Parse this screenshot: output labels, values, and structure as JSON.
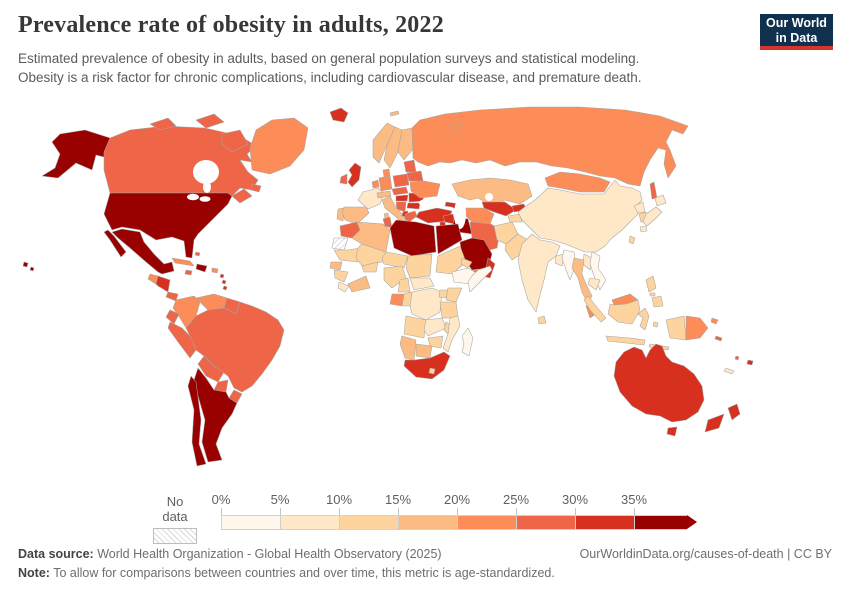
{
  "header": {
    "title": "Prevalence rate of obesity in adults, 2022",
    "subtitle_line1": "Estimated prevalence of obesity in adults, based on general population surveys and statistical modeling.",
    "subtitle_line2": "Obesity is a risk factor for chronic complications, including cardiovascular disease, and premature death.",
    "logo": {
      "line1": "Our World",
      "line2": "in Data",
      "bg": "#10304f",
      "accent": "#d5352c"
    }
  },
  "legend": {
    "no_data_label": "No data",
    "tick_labels": [
      "0%",
      "5%",
      "10%",
      "15%",
      "20%",
      "25%",
      "30%",
      "35%"
    ],
    "bin_colors": [
      "#fff7ec",
      "#fee8c8",
      "#fdd49e",
      "#fdbb84",
      "#fc8d59",
      "#ef6548",
      "#d7301f",
      "#990000"
    ]
  },
  "footer": {
    "source_label": "Data source:",
    "source_text": " World Health Organization - Global Health Observatory (2025)",
    "link_text": "OurWorldinData.org/causes-of-death | CC BY",
    "note_label": "Note:",
    "note_text": " To allow for comparisons between countries and over time, this metric is age-standardized."
  },
  "map": {
    "ocean": "#ffffff",
    "no_data_fill": "url(#hatch)",
    "region_fills": {
      "alaska": "#990000",
      "usa": "#990000",
      "canada": "#ef6548",
      "arctic_islands": "#ef6548",
      "greenland": "#fc8d59",
      "mexico": "#990000",
      "guatemala": "#fc8d59",
      "honduras_nicaragua": "#d7301f",
      "costa_panama": "#ef6548",
      "cuba": "#fc8d59",
      "hispaniola": "#990000",
      "jamaica": "#ef6548",
      "puerto_rico": "#fc8d59",
      "lesser_antilles": "#d7301f",
      "bahamas": "#ef6548",
      "hawaii": "#990000",
      "colombia": "#fc8d59",
      "venezuela": "#fc8d59",
      "guyana_suriname": "#ef6548",
      "ecuador": "#ef6548",
      "peru": "#ef6548",
      "brazil": "#ef6548",
      "bolivia": "#ef6548",
      "paraguay": "#ef6548",
      "uruguay": "#ef6548",
      "argentina": "#990000",
      "chile": "#990000",
      "iceland": "#d7301f",
      "uk": "#d7301f",
      "ireland": "#ef6548",
      "norway": "#fdbb84",
      "sweden": "#fdbb84",
      "finland": "#fdbb84",
      "denmark": "#fc8d59",
      "france": "#fee8c8",
      "spain": "#fdbb84",
      "portugal": "#fdbb84",
      "germany": "#fc8d59",
      "benelux": "#fc8d59",
      "switzerland_austria": "#fdbb84",
      "italy": "#fdbb84",
      "poland": "#ef6548",
      "czech_slovakia": "#ef6548",
      "hungary": "#d7301f",
      "romania": "#d7301f",
      "bulgaria": "#d7301f",
      "balkans": "#ef6548",
      "albania_macedonia": "#d7301f",
      "greece": "#ef6548",
      "baltics": "#ef6548",
      "belarus": "#ef6548",
      "ukraine": "#fc8d59",
      "russia": "#fc8d59",
      "novaya_zemlya": "#fc8d59",
      "svalbard": "#fdbb84",
      "turkey": "#d7301f",
      "caucasus": "#d7301f",
      "morocco": "#ef6548",
      "algeria": "#fdbb84",
      "tunisia": "#ef6548",
      "libya": "#990000",
      "egypt": "#990000",
      "sudan": "#fdd49e",
      "eritrea": "#fdd49e",
      "ethiopia": "#fff7ec",
      "somalia": "#fff7ec",
      "mauritania": "#fdd49e",
      "senegal": "#fdbb84",
      "guinea": "#fdd49e",
      "sierra_leone_liberia": "#fee8c8",
      "mali": "#fdd49e",
      "burkina_faso": "#fdd49e",
      "ivory_coast_ghana": "#fdbb84",
      "niger": "#fdd49e",
      "nigeria": "#fdd49e",
      "chad": "#fdd49e",
      "central_african_republic": "#fee8c8",
      "cameroon": "#fdd49e",
      "gabon": "#fc8d59",
      "congo": "#fdd49e",
      "drc": "#fee8c8",
      "uganda": "#fdd49e",
      "kenya": "#fdd49e",
      "tanzania": "#fdd49e",
      "angola": "#fdd49e",
      "zambia": "#fee8c8",
      "malawi": "#fdd49e",
      "mozambique": "#fee8c8",
      "zimbabwe": "#fdd49e",
      "botswana": "#fdbb84",
      "namibia": "#fdbb84",
      "south_africa": "#d7301f",
      "lesotho": "#fdd49e",
      "madagascar": "#fff7ec",
      "syria": "#d7301f",
      "levant": "#d7301f",
      "iraq": "#990000",
      "iran": "#ef6548",
      "saudi_arabia": "#990000",
      "yemen": "#ef6548",
      "oman": "#d7301f",
      "kazakhstan": "#fdbb84",
      "uzbekistan": "#d7301f",
      "turkmenistan": "#fc8d59",
      "kyrgyzstan": "#d7301f",
      "tajikistan": "#fdd49e",
      "afghanistan": "#fdd49e",
      "pakistan": "#fdd49e",
      "mongolia": "#fc8d59",
      "china": "#fee8c8",
      "taiwan": "#fdd49e",
      "north_korea": "#fee8c8",
      "south_korea": "#fdd49e",
      "japan": "#fee8c8",
      "sakhalin": "#ef6548",
      "india": "#fee8c8",
      "nepal": "#fff7ec",
      "bangladesh": "#fee8c8",
      "sri_lanka": "#fdd49e",
      "myanmar": "#fff7ec",
      "thailand": "#fdbb84",
      "laos": "#fee8c8",
      "vietnam": "#fff7ec",
      "cambodia": "#fee8c8",
      "malaysia": "#fc8d59",
      "malaysia_borneo": "#fc8d59",
      "indonesia": "#fdd49e",
      "papua_indonesia": "#fdd49e",
      "png": "#fc8d59",
      "solomon_islands": "#ef6548",
      "philippines": "#fdd49e",
      "australia": "#d7301f",
      "tasmania": "#d7301f",
      "new_zealand": "#d7301f",
      "fiji": "#d7301f",
      "vanuatu": "#ef6548",
      "new_caledonia": "#fee8c8"
    }
  }
}
